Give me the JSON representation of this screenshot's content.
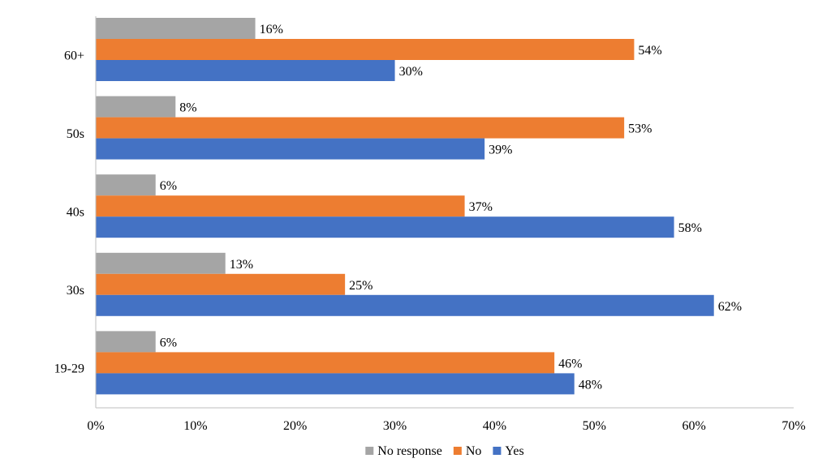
{
  "chart_data": {
    "type": "bar",
    "orientation": "horizontal",
    "categories": [
      "60+",
      "50s",
      "40s",
      "30s",
      "19-29"
    ],
    "series": [
      {
        "name": "No response",
        "values": [
          16,
          8,
          6,
          13,
          6
        ],
        "color": "#A5A5A5"
      },
      {
        "name": "No",
        "values": [
          54,
          53,
          37,
          25,
          46
        ],
        "color": "#ED7D31"
      },
      {
        "name": "Yes",
        "values": [
          30,
          39,
          58,
          62,
          48
        ],
        "color": "#4472C4"
      }
    ],
    "data_labels": [
      [
        "16%",
        "8%",
        "6%",
        "13%",
        "6%"
      ],
      [
        "54%",
        "53%",
        "37%",
        "25%",
        "46%"
      ],
      [
        "30%",
        "39%",
        "58%",
        "62%",
        "48%"
      ]
    ],
    "x_ticks": [
      "0%",
      "10%",
      "20%",
      "30%",
      "40%",
      "50%",
      "60%",
      "70%"
    ],
    "xlim": [
      0,
      70
    ],
    "grid": false,
    "legend_position": "bottom"
  }
}
